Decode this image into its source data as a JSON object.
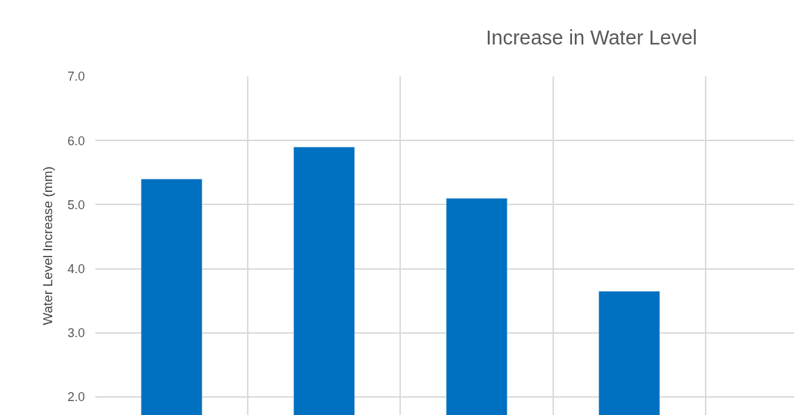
{
  "chart_data": {
    "type": "bar",
    "title": "Increase in Water Level",
    "ylabel": "Water Level Increase (mm)",
    "categories": [
      null,
      null,
      null,
      null
    ],
    "values": [
      5.4,
      5.9,
      5.1,
      3.65
    ],
    "color": "#0070c0",
    "ylim": [
      1.72,
      7.0
    ],
    "yticks": [
      {
        "value": 2,
        "label": "2.0"
      },
      {
        "value": 3,
        "label": "3.0"
      },
      {
        "value": 4,
        "label": "4.0"
      },
      {
        "value": 5,
        "label": "5.0"
      },
      {
        "value": 6,
        "label": "6.0"
      },
      {
        "value": 7,
        "label": "7.0"
      }
    ],
    "grid": true,
    "tick_labels": "y"
  }
}
